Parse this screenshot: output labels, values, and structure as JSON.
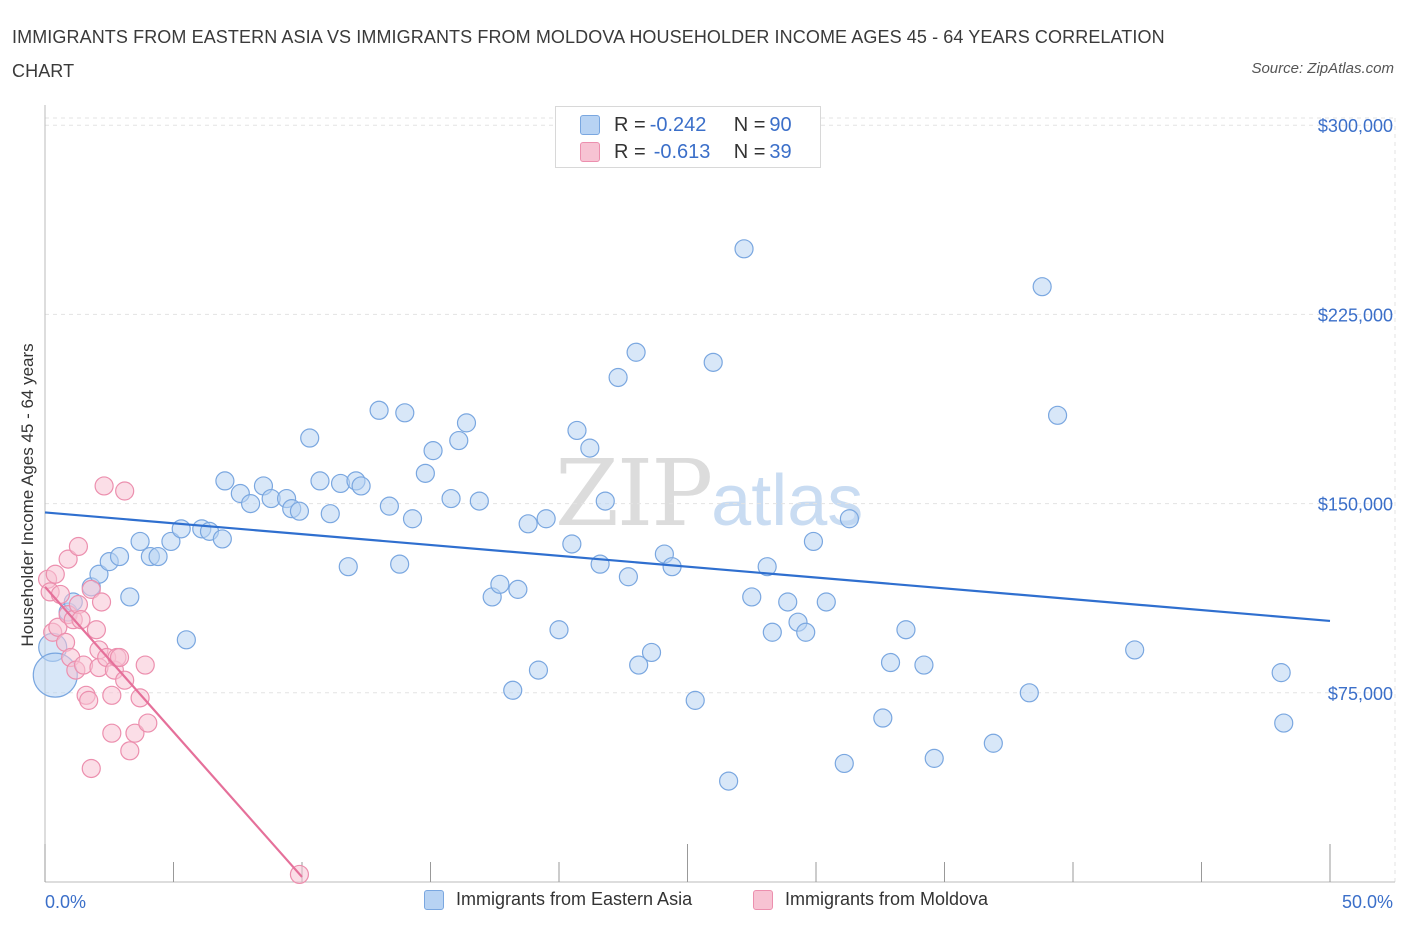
{
  "title": "IMMIGRANTS FROM EASTERN ASIA VS IMMIGRANTS FROM MOLDOVA HOUSEHOLDER INCOME AGES 45 - 64 YEARS CORRELATION CHART",
  "source": "Source: ZipAtlas.com",
  "watermark": {
    "zip": "ZIP",
    "atlas": "atlas"
  },
  "legend_top": {
    "rows": [
      {
        "r_label": "R = ",
        "r_value": "-0.242",
        "n_label": "N = ",
        "n_value": "90"
      },
      {
        "r_label": "R = ",
        "r_value": "-0.613",
        "n_label": "N = ",
        "n_value": "39"
      }
    ]
  },
  "colors": {
    "blue_fill": "#b8d3f3",
    "blue_stroke": "#7aa7e0",
    "blue_line": "#2f6fcf",
    "pink_fill": "#f7c3d3",
    "pink_stroke": "#ec8fae",
    "pink_line": "#e5709a",
    "grid": "#e3e3e3",
    "tick_text": "#3b6fc9"
  },
  "chart_data": {
    "type": "scatter",
    "title": "IMMIGRANTS FROM EASTERN ASIA VS IMMIGRANTS FROM MOLDOVA HOUSEHOLDER INCOME AGES 45 - 64 YEARS CORRELATION CHART",
    "xlabel": "",
    "ylabel": "Householder Income Ages 45 - 64 years",
    "xlim": [
      0,
      50
    ],
    "ylim": [
      0,
      310000
    ],
    "x_tick_labels": [
      "0.0%",
      "50.0%"
    ],
    "y_ticks": [
      75000,
      150000,
      225000,
      300000
    ],
    "y_tick_labels": [
      "$75,000",
      "$150,000",
      "$225,000",
      "$300,000"
    ],
    "grid": true,
    "legend_position": "bottom",
    "series": [
      {
        "name": "Immigrants from Eastern Asia",
        "color": "#b8d3f3",
        "R": -0.242,
        "N": 90,
        "trend": {
          "x": [
            0,
            50
          ],
          "y": [
            146500,
            103500
          ]
        },
        "points": [
          [
            0.3,
            93000
          ],
          [
            0.4,
            82000
          ],
          [
            0.9,
            107000
          ],
          [
            1.1,
            111000
          ],
          [
            1.8,
            117000
          ],
          [
            2.1,
            122000
          ],
          [
            2.5,
            127000
          ],
          [
            2.9,
            129000
          ],
          [
            3.3,
            113000
          ],
          [
            3.7,
            135000
          ],
          [
            4.1,
            129000
          ],
          [
            4.4,
            129000
          ],
          [
            4.9,
            135000
          ],
          [
            5.3,
            140000
          ],
          [
            5.5,
            96000
          ],
          [
            6.1,
            140000
          ],
          [
            6.4,
            139000
          ],
          [
            6.9,
            136000
          ],
          [
            7.0,
            159000
          ],
          [
            7.6,
            154000
          ],
          [
            8.0,
            150000
          ],
          [
            8.5,
            157000
          ],
          [
            8.8,
            152000
          ],
          [
            9.4,
            152000
          ],
          [
            9.6,
            148000
          ],
          [
            9.9,
            147000
          ],
          [
            10.3,
            176000
          ],
          [
            10.7,
            159000
          ],
          [
            11.1,
            146000
          ],
          [
            11.5,
            158000
          ],
          [
            11.8,
            125000
          ],
          [
            12.1,
            159000
          ],
          [
            12.3,
            157000
          ],
          [
            13.0,
            187000
          ],
          [
            13.4,
            149000
          ],
          [
            13.8,
            126000
          ],
          [
            14.0,
            186000
          ],
          [
            14.3,
            144000
          ],
          [
            14.8,
            162000
          ],
          [
            15.1,
            171000
          ],
          [
            15.8,
            152000
          ],
          [
            16.1,
            175000
          ],
          [
            16.4,
            182000
          ],
          [
            16.9,
            151000
          ],
          [
            17.4,
            113000
          ],
          [
            17.7,
            118000
          ],
          [
            18.2,
            76000
          ],
          [
            18.4,
            116000
          ],
          [
            18.8,
            142000
          ],
          [
            19.2,
            84000
          ],
          [
            19.5,
            144000
          ],
          [
            20.0,
            100000
          ],
          [
            20.5,
            134000
          ],
          [
            20.7,
            179000
          ],
          [
            21.2,
            172000
          ],
          [
            21.6,
            126000
          ],
          [
            21.8,
            151000
          ],
          [
            22.3,
            200000
          ],
          [
            22.7,
            121000
          ],
          [
            23.0,
            210000
          ],
          [
            23.1,
            86000
          ],
          [
            23.6,
            91000
          ],
          [
            24.1,
            130000
          ],
          [
            24.4,
            125000
          ],
          [
            25.3,
            72000
          ],
          [
            26.0,
            206000
          ],
          [
            26.6,
            40000
          ],
          [
            27.2,
            251000
          ],
          [
            27.5,
            113000
          ],
          [
            28.1,
            125000
          ],
          [
            28.3,
            99000
          ],
          [
            28.9,
            111000
          ],
          [
            29.3,
            103000
          ],
          [
            29.6,
            99000
          ],
          [
            29.9,
            135000
          ],
          [
            30.4,
            111000
          ],
          [
            31.1,
            47000
          ],
          [
            31.3,
            144000
          ],
          [
            32.6,
            65000
          ],
          [
            32.9,
            87000
          ],
          [
            33.5,
            100000
          ],
          [
            34.2,
            86000
          ],
          [
            34.6,
            49000
          ],
          [
            36.9,
            55000
          ],
          [
            38.3,
            75000
          ],
          [
            38.8,
            236000
          ],
          [
            39.4,
            185000
          ],
          [
            42.4,
            92000
          ],
          [
            48.1,
            83000
          ],
          [
            48.2,
            63000
          ]
        ]
      },
      {
        "name": "Immigrants from Moldova",
        "color": "#f7c3d3",
        "R": -0.613,
        "N": 39,
        "trend": {
          "x": [
            0,
            10
          ],
          "y": [
            117000,
            2000
          ]
        },
        "points": [
          [
            0.1,
            120000
          ],
          [
            0.2,
            115000
          ],
          [
            0.3,
            99000
          ],
          [
            0.4,
            122000
          ],
          [
            0.5,
            101000
          ],
          [
            0.6,
            114000
          ],
          [
            0.8,
            95000
          ],
          [
            0.9,
            106000
          ],
          [
            0.9,
            128000
          ],
          [
            1.0,
            89000
          ],
          [
            1.1,
            104000
          ],
          [
            1.2,
            84000
          ],
          [
            1.3,
            110000
          ],
          [
            1.3,
            133000
          ],
          [
            1.4,
            104000
          ],
          [
            1.5,
            86000
          ],
          [
            1.6,
            74000
          ],
          [
            1.7,
            72000
          ],
          [
            1.8,
            116000
          ],
          [
            1.8,
            45000
          ],
          [
            2.0,
            100000
          ],
          [
            2.1,
            92000
          ],
          [
            2.1,
            85000
          ],
          [
            2.2,
            111000
          ],
          [
            2.3,
            157000
          ],
          [
            2.4,
            89000
          ],
          [
            2.6,
            59000
          ],
          [
            2.6,
            74000
          ],
          [
            2.7,
            84000
          ],
          [
            2.8,
            89000
          ],
          [
            2.9,
            89000
          ],
          [
            3.1,
            80000
          ],
          [
            3.1,
            155000
          ],
          [
            3.3,
            52000
          ],
          [
            3.5,
            59000
          ],
          [
            3.7,
            73000
          ],
          [
            3.9,
            86000
          ],
          [
            4.0,
            63000
          ],
          [
            9.9,
            3000
          ]
        ]
      }
    ]
  },
  "legend_bottom": {
    "items": [
      {
        "label": "Immigrants from Eastern Asia"
      },
      {
        "label": "Immigrants from Moldova"
      }
    ]
  }
}
